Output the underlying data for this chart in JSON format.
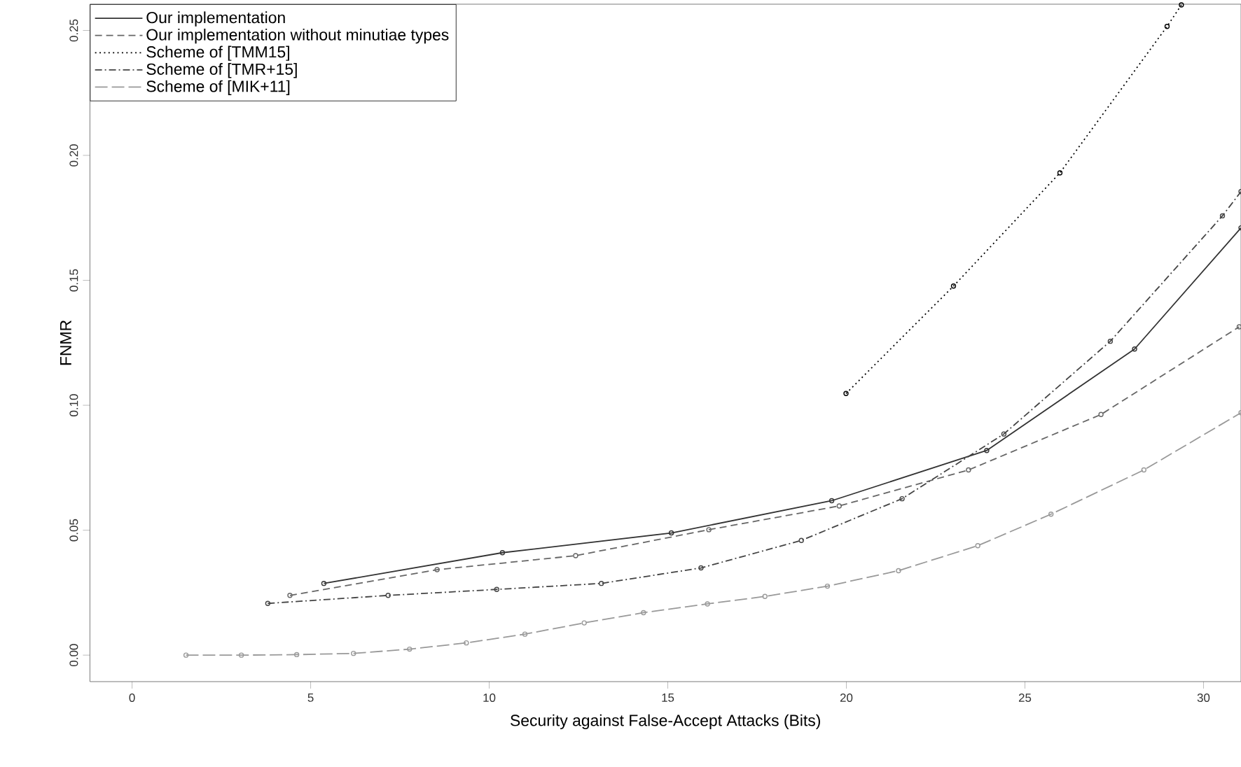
{
  "chart_data": {
    "type": "line",
    "xlabel": "Security against False-Accept Attacks (Bits)",
    "ylabel": "FNMR",
    "xlim": [
      -1.18,
      31.05
    ],
    "ylim": [
      -0.0106,
      0.2605
    ],
    "xticks": [
      0,
      5,
      10,
      15,
      20,
      25,
      30
    ],
    "yticks": [
      {
        "value": 0,
        "label": "0.00"
      },
      {
        "value": 0.05,
        "label": "0.05"
      },
      {
        "value": 0.1,
        "label": "0.10"
      },
      {
        "value": 0.15,
        "label": "0.15"
      },
      {
        "value": 0.2,
        "label": "0.20"
      },
      {
        "value": 0.25,
        "label": "0.25"
      }
    ],
    "grid": false,
    "legend": "top left",
    "marker": "circle",
    "series": [
      {
        "name": "Our implementation",
        "color": "#333333",
        "line_style": "solid",
        "x": [
          5.37,
          10.37,
          15.1,
          19.59,
          23.93,
          28.07,
          31.05
        ],
        "values": [
          0.0287,
          0.041,
          0.0489,
          0.0618,
          0.0819,
          0.1225,
          0.171
        ]
      },
      {
        "name": "Our implementation without minutiae types",
        "color": "#666666",
        "line_style": "dashed",
        "x": [
          4.42,
          8.54,
          12.42,
          16.15,
          19.8,
          23.42,
          27.13,
          31.0
        ],
        "values": [
          0.0239,
          0.0342,
          0.0398,
          0.0502,
          0.0597,
          0.0741,
          0.0963,
          0.1314
        ]
      },
      {
        "name": "Scheme of [TMM15]",
        "color": "#000000",
        "line_style": "dotted",
        "x": [
          19.99,
          23.0,
          25.98,
          28.98,
          29.38
        ],
        "values": [
          0.1047,
          0.1477,
          0.193,
          0.2516,
          0.2602
        ]
      },
      {
        "name": "Scheme of [TMR+15]",
        "color": "#444444",
        "line_style": "dashdot",
        "x": [
          3.8,
          7.17,
          10.21,
          13.14,
          15.93,
          18.74,
          21.56,
          24.41,
          27.39,
          30.53,
          31.05
        ],
        "values": [
          0.0207,
          0.0239,
          0.0263,
          0.0287,
          0.0349,
          0.0459,
          0.0626,
          0.0885,
          0.1256,
          0.1758,
          0.1855
        ]
      },
      {
        "name": "Scheme of [MIK+11]",
        "color": "#999999",
        "line_style": "longdash",
        "x": [
          1.51,
          3.06,
          4.61,
          6.2,
          7.77,
          9.36,
          11.0,
          12.66,
          14.32,
          16.11,
          17.72,
          19.47,
          21.46,
          23.68,
          25.73,
          28.33,
          31.05
        ],
        "values": [
          0.0,
          0.0,
          0.0002,
          0.0007,
          0.0024,
          0.0049,
          0.0084,
          0.0129,
          0.017,
          0.0205,
          0.0235,
          0.0276,
          0.0338,
          0.0438,
          0.0564,
          0.0741,
          0.097
        ]
      }
    ]
  }
}
